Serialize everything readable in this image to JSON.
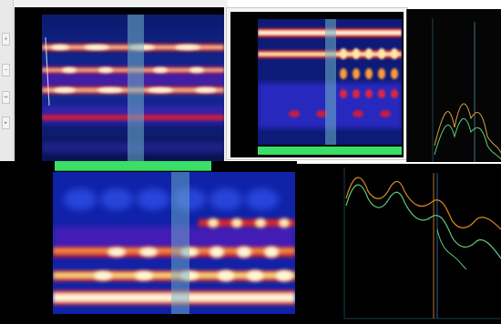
{
  "windows": {
    "top_left": {
      "time_ticks": [
        "",
        "",
        "",
        "",
        "",
        "",
        ""
      ],
      "freq_ticks": [
        "",
        "",
        "",
        "",
        "",
        "",
        ""
      ],
      "toolbar_icons": [
        "zoom-in-icon",
        "zoom-out-icon",
        "pan-icon",
        "cursor-icon"
      ]
    },
    "top_right": {
      "time_ticks": [
        "",
        "",
        "",
        "",
        "",
        "",
        "",
        "",
        "",
        ""
      ],
      "freq_ticks": [
        "",
        "",
        "",
        "",
        "",
        ""
      ],
      "status_strip": ""
    },
    "far_right": {
      "freq_ticks": [
        "",
        "",
        "",
        "",
        ""
      ]
    },
    "bottom_left": {
      "time_ticks": [
        "",
        "",
        "",
        "",
        "",
        "",
        "",
        "",
        ""
      ],
      "freq_ticks": [
        "",
        "",
        "",
        "",
        ""
      ],
      "status_strip": ""
    },
    "bottom_right": {
      "freq_ticks": [
        "",
        "",
        "",
        "",
        "",
        "",
        ""
      ],
      "x_ticks": [
        "",
        "",
        "",
        "",
        "",
        ""
      ]
    }
  },
  "colors": {
    "spectrogram_low": "#0b1260",
    "spectrogram_mid": "#d4152b",
    "spectrogram_high": "#fff7d8",
    "cursor_band": "#6fb2c8",
    "status_green": "#39e065",
    "curve_orange": "#e08a22",
    "curve_green": "#5fcc7a",
    "marker_blue": "#2e74c8"
  }
}
